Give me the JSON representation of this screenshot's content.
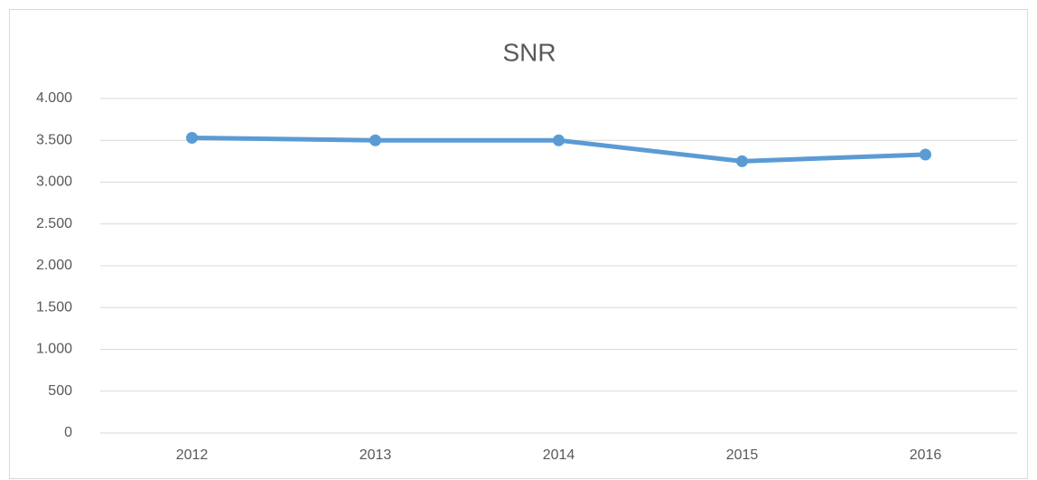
{
  "chart_data": {
    "type": "line",
    "title": "SNR",
    "categories": [
      "2012",
      "2013",
      "2014",
      "2015",
      "2016"
    ],
    "series": [
      {
        "name": "SNR",
        "color": "#5b9bd5",
        "values": [
          3530,
          3500,
          3500,
          3250,
          3330
        ]
      }
    ],
    "ylim": [
      0,
      4000
    ],
    "yticks": [
      0,
      500,
      {
        "value": 1000,
        "label": "1.000"
      },
      {
        "value": 1500,
        "label": "1.500"
      },
      {
        "value": 2000,
        "label": "2.000"
      },
      {
        "value": 2500,
        "label": "2.500"
      },
      {
        "value": 3000,
        "label": "3.000"
      },
      {
        "value": 3500,
        "label": "3.500"
      },
      {
        "value": 4000,
        "label": "4.000"
      }
    ],
    "grid": true
  }
}
